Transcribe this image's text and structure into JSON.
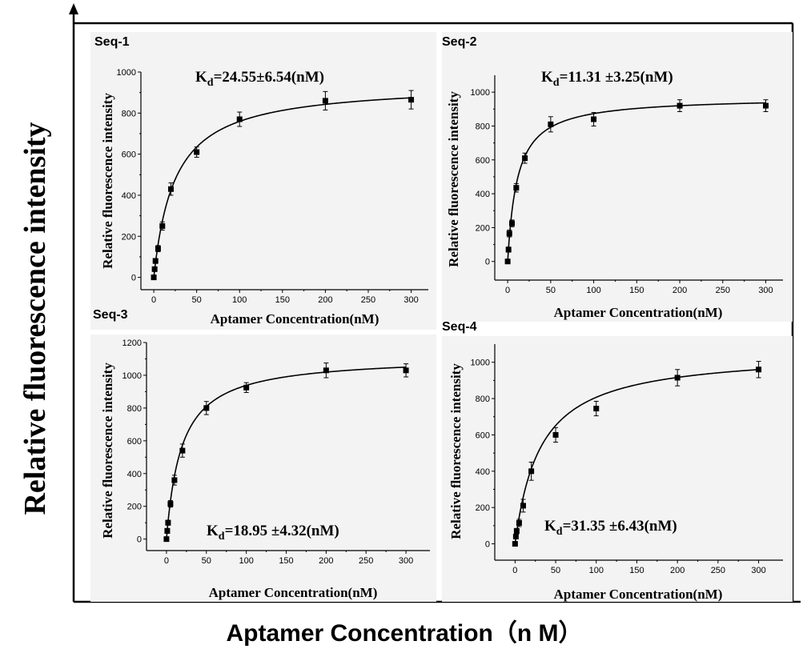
{
  "figure": {
    "ylabel": "Relative fluorescence intensity",
    "xlabel": "Aptamer Concentration（n M）"
  },
  "chart_data": [
    {
      "type": "scatter",
      "tag": "Seq-1",
      "kd_main": "K",
      "kd_sub": "d",
      "kd_rest": "=24.55±6.54(nM)",
      "xlabel": "Aptamer Concentration(nM)",
      "ylabel": "Relative fluorescence intensity",
      "xlim": [
        -15,
        320
      ],
      "ylim": [
        -60,
        1000
      ],
      "xticks": [
        0,
        50,
        100,
        150,
        200,
        250,
        300
      ],
      "yticks": [
        0,
        200,
        400,
        600,
        800,
        1000
      ],
      "x": [
        0,
        1,
        2,
        5,
        10,
        20,
        50,
        100,
        200,
        300
      ],
      "y": [
        0,
        40,
        80,
        140,
        250,
        430,
        610,
        770,
        860,
        865
      ],
      "err": [
        8,
        10,
        12,
        15,
        20,
        30,
        25,
        35,
        45,
        45
      ],
      "fit": {
        "bmax": 946,
        "kd": 24.55
      }
    },
    {
      "type": "scatter",
      "tag": "Seq-2",
      "kd_main": "K",
      "kd_sub": "d",
      "kd_rest": "=11.31 ±3.25(nM)",
      "xlabel": "Aptamer Concentration(nM)",
      "ylabel": "Relative fluorescence intensity",
      "xlim": [
        -15,
        320
      ],
      "ylim": [
        -110,
        1100
      ],
      "xticks": [
        0,
        50,
        100,
        150,
        200,
        250,
        300
      ],
      "yticks": [
        0,
        200,
        400,
        600,
        800,
        1000
      ],
      "x": [
        0,
        1,
        2,
        5,
        10,
        20,
        50,
        100,
        200,
        300
      ],
      "y": [
        0,
        70,
        165,
        225,
        435,
        610,
        810,
        840,
        920,
        920
      ],
      "err": [
        8,
        15,
        20,
        20,
        25,
        30,
        45,
        40,
        35,
        35
      ],
      "fit": {
        "bmax": 972,
        "kd": 11.31
      }
    },
    {
      "type": "scatter",
      "tag": "Seq-3",
      "kd_main": "K",
      "kd_sub": "d",
      "kd_rest": "=18.95 ±4.32(nM)",
      "xlabel": "Aptamer Concentration(nM)",
      "ylabel": "Relative fluorescence intensity",
      "xlim": [
        -25,
        330
      ],
      "ylim": [
        -70,
        1200
      ],
      "xticks": [
        0,
        50,
        100,
        150,
        200,
        250,
        300
      ],
      "yticks": [
        0,
        200,
        400,
        600,
        800,
        1000,
        1200
      ],
      "x": [
        0,
        1,
        2,
        5,
        10,
        20,
        50,
        100,
        200,
        300
      ],
      "y": [
        0,
        50,
        100,
        215,
        360,
        540,
        800,
        925,
        1030,
        1030
      ],
      "err": [
        8,
        15,
        15,
        20,
        30,
        40,
        40,
        30,
        45,
        40
      ],
      "fit": {
        "bmax": 1116,
        "kd": 18.95
      }
    },
    {
      "type": "scatter",
      "tag": "Seq-4",
      "kd_main": "K",
      "kd_sub": "d",
      "kd_rest": "=31.35 ±6.43(nM)",
      "xlabel": "Aptamer Concentration(nM)",
      "ylabel": "Relative fluorescence intensity",
      "xlim": [
        -25,
        330
      ],
      "ylim": [
        -90,
        1100
      ],
      "xticks": [
        0,
        50,
        100,
        150,
        200,
        250,
        300
      ],
      "yticks": [
        0,
        200,
        400,
        600,
        800,
        1000
      ],
      "x": [
        0,
        1,
        2,
        5,
        10,
        20,
        50,
        100,
        200,
        300
      ],
      "y": [
        0,
        40,
        70,
        115,
        210,
        400,
        600,
        745,
        915,
        960
      ],
      "err": [
        8,
        10,
        15,
        20,
        35,
        50,
        40,
        40,
        45,
        45
      ],
      "fit": {
        "bmax": 1060,
        "kd": 31.35
      }
    }
  ]
}
